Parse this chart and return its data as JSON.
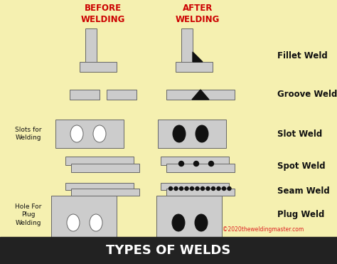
{
  "bg_color": "#f5f0b0",
  "footer_color": "#222222",
  "title": "TYPES OF WELDS",
  "title_color": "#ffffff",
  "header_before": "BEFORE\nWELDING",
  "header_after": "AFTER\nWELDING",
  "header_color": "#cc0000",
  "weld_labels": [
    "Fillet Weld",
    "Groove Weld",
    "Slot Weld",
    "Spot Weld",
    "Seam Weld",
    "Plug Weld"
  ],
  "copyright": "©2020theweldingmaster.com",
  "light_gray": "#cccccc",
  "mid_gray": "#aaaaaa",
  "dark_gray": "#666666",
  "black": "#111111",
  "white": "#ffffff",
  "fig_w": 4.74,
  "fig_h": 3.71,
  "dpi": 100
}
